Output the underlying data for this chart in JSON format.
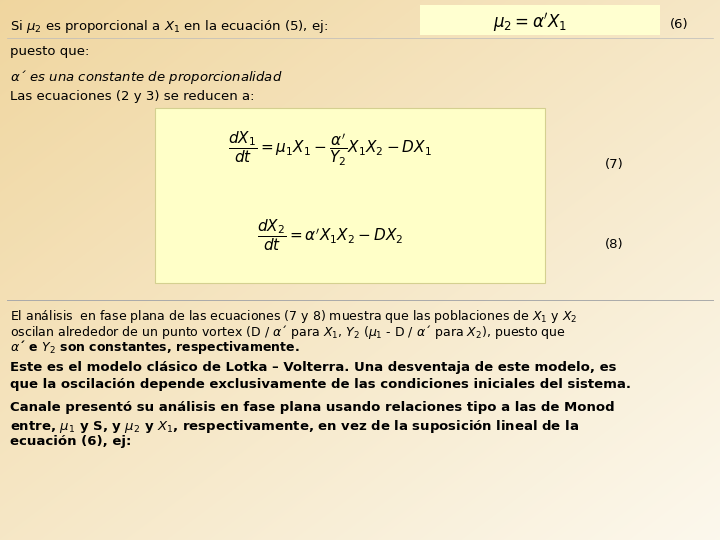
{
  "bg_top_color": "#f5e6c8",
  "bg_bottom_color": "#fdf8ee",
  "eq_box_color": "#fffff0",
  "eq_box_border": "#e8e4aa",
  "separator_color": "#cccccc",
  "figsize": [
    7.2,
    5.4
  ],
  "dpi": 100,
  "line1_text": "Si $\\mu_2$ es proporcional a $X_1$ en la ecuación (5), ej:",
  "eq6_math": "$\\mu_2 = \\alpha' X_1$",
  "eq6_label": "(6)",
  "line2": "puesto que:",
  "line3": "$\\alpha$´ es una constante de proporcionalidad",
  "line4": "Las ecuaciones (2 y 3) se reducen a:",
  "eq7_math": "$\\dfrac{dX_1}{dt} = \\mu_1 X_1 - \\dfrac{\\alpha'}{Y_2} X_1 X_2 - D X_1$",
  "eq7_label": "(7)",
  "eq8_math": "$\\dfrac{dX_2}{dt} = \\alpha' X_1 X_2 - D X_2$",
  "eq8_label": "(8)",
  "para1_line1": "El análisis  en fase plana de las ecuaciones (7 y 8) muestra que las poblaciones de $X_1$ y $X_2$",
  "para1_line2": "oscilan alrededor de un punto vortex (D / $\\alpha$´ para $X_1$, $Y_2$ ($\\mu_1$ - D / $\\alpha$´ para $X_2$), puesto que",
  "para1_line3_bold": "$\\alpha$´ e $Y_2$ son constantes, respectivamente.",
  "para2_line1_bold": "Este es el modelo clásico de Lotka – Volterra. Una desventaja de este modelo, es",
  "para2_line2_bold": "que la oscilación depende exclusivamente de las condiciones iniciales del sistema.",
  "para3_line1_bold": "Canale presentó su análisis en fase plana usando relaciones tipo a las de Monod",
  "para3_line2_bold": "entre, $\\mu_1$ y S, y $\\mu_2$ y $X_1$, respectivamente, en vez de la suposición lineal de la",
  "para3_line3_bold": "ecuación (6), ej:",
  "text_fontsize": 9.5,
  "eq_fontsize": 11,
  "small_fontsize": 9
}
